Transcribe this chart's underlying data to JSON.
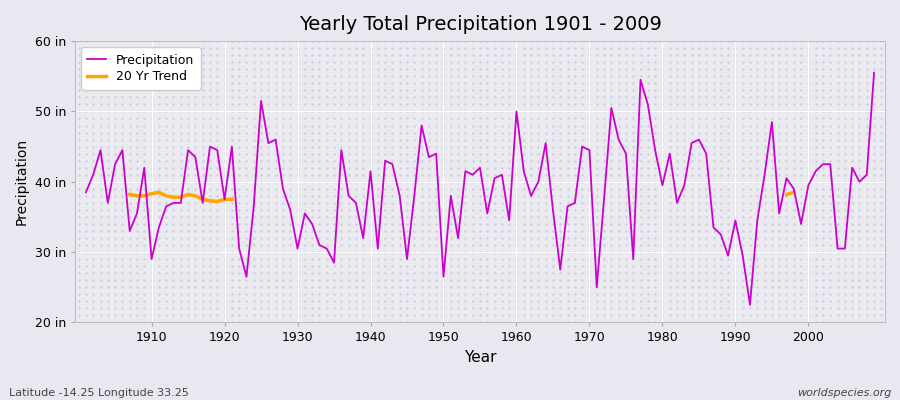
{
  "title": "Yearly Total Precipitation 1901 - 2009",
  "xlabel": "Year",
  "ylabel": "Precipitation",
  "subtitle": "Latitude -14.25 Longitude 33.25",
  "watermark": "worldspecies.org",
  "years": [
    1901,
    1902,
    1903,
    1904,
    1905,
    1906,
    1907,
    1908,
    1909,
    1910,
    1911,
    1912,
    1913,
    1914,
    1915,
    1916,
    1917,
    1918,
    1919,
    1920,
    1921,
    1922,
    1923,
    1924,
    1925,
    1926,
    1927,
    1928,
    1929,
    1930,
    1931,
    1932,
    1933,
    1934,
    1935,
    1936,
    1937,
    1938,
    1939,
    1940,
    1941,
    1942,
    1943,
    1944,
    1945,
    1946,
    1947,
    1948,
    1949,
    1950,
    1951,
    1952,
    1953,
    1954,
    1955,
    1956,
    1957,
    1958,
    1959,
    1960,
    1961,
    1962,
    1963,
    1964,
    1965,
    1966,
    1967,
    1968,
    1969,
    1970,
    1971,
    1972,
    1973,
    1974,
    1975,
    1976,
    1977,
    1978,
    1979,
    1980,
    1981,
    1982,
    1983,
    1984,
    1985,
    1986,
    1987,
    1988,
    1989,
    1990,
    1991,
    1992,
    1993,
    1994,
    1995,
    1996,
    1997,
    1998,
    1999,
    2000,
    2001,
    2002,
    2003,
    2004,
    2005,
    2006,
    2007,
    2008,
    2009
  ],
  "precip": [
    38.5,
    41.0,
    44.5,
    37.0,
    42.5,
    44.5,
    33.0,
    35.5,
    42.0,
    29.0,
    33.5,
    36.5,
    37.0,
    37.0,
    44.5,
    43.5,
    37.0,
    45.0,
    44.5,
    37.5,
    45.0,
    30.5,
    26.5,
    36.5,
    51.5,
    45.5,
    46.0,
    39.0,
    36.0,
    30.5,
    35.5,
    34.0,
    31.0,
    30.5,
    28.5,
    44.5,
    38.0,
    37.0,
    32.0,
    41.5,
    30.5,
    43.0,
    42.5,
    38.0,
    29.0,
    38.0,
    48.0,
    43.5,
    44.0,
    26.5,
    38.0,
    32.0,
    41.5,
    41.0,
    42.0,
    35.5,
    40.5,
    41.0,
    34.5,
    50.0,
    41.5,
    38.0,
    40.0,
    45.5,
    36.0,
    27.5,
    36.5,
    37.0,
    45.0,
    44.5,
    25.0,
    37.5,
    50.5,
    46.0,
    44.0,
    29.0,
    54.5,
    51.0,
    44.5,
    39.5,
    44.0,
    37.0,
    39.5,
    45.5,
    46.0,
    44.0,
    33.5,
    32.5,
    29.5,
    34.5,
    29.5,
    22.5,
    34.5,
    41.0,
    48.5,
    35.5,
    40.5,
    39.0,
    34.0,
    39.5,
    41.5,
    42.5,
    42.5,
    30.5,
    30.5,
    42.0,
    40.0,
    41.0,
    55.5
  ],
  "trend_seg1_years": [
    1907,
    1908,
    1909,
    1910,
    1911,
    1912,
    1913,
    1914,
    1915,
    1916,
    1917,
    1918,
    1919,
    1920,
    1921
  ],
  "trend_seg1_vals": [
    38.2,
    38.0,
    38.0,
    38.3,
    38.5,
    38.0,
    37.8,
    37.8,
    38.2,
    38.0,
    37.5,
    37.3,
    37.2,
    37.5,
    37.5
  ],
  "trend_seg2_years": [
    1997,
    1998
  ],
  "trend_seg2_vals": [
    38.2,
    38.5
  ],
  "precip_color": "#CC00CC",
  "trend_color": "#FFA500",
  "bg_color": "#E8E8F0",
  "plot_bg_color": "#EAEAF0",
  "grid_color": "#FFFFFF",
  "ylim": [
    20,
    60
  ],
  "yticks": [
    20,
    30,
    40,
    50,
    60
  ],
  "ytick_labels": [
    "20 in",
    "30 in",
    "40 in",
    "50 in",
    "60 in"
  ],
  "xlim": [
    1899.5,
    2010.5
  ],
  "xticks": [
    1910,
    1920,
    1930,
    1940,
    1950,
    1960,
    1970,
    1980,
    1990,
    2000
  ]
}
